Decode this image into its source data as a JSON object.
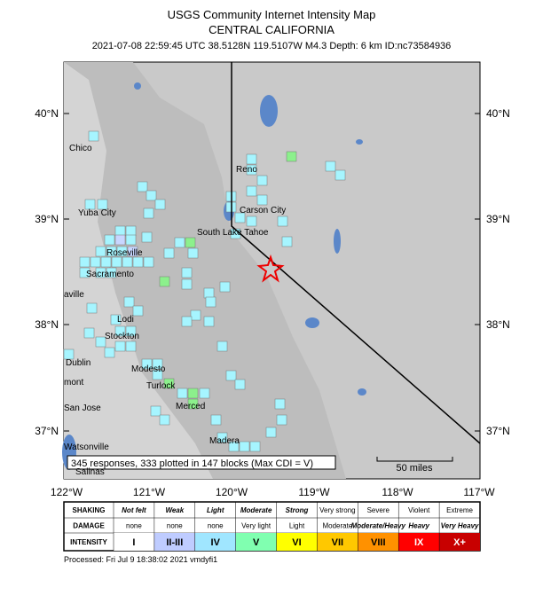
{
  "header": {
    "title": "USGS Community Internet Intensity Map",
    "region": "CENTRAL CALIFORNIA",
    "event": "2021-07-08 22:59:45 UTC 38.5128N 119.5107W M4.3 Depth: 6 km ID:nc73584936"
  },
  "map": {
    "lat_labels": [
      "40°N",
      "39°N",
      "38°N",
      "37°N"
    ],
    "lon_labels": [
      "122°W",
      "121°W",
      "120°W",
      "119°W",
      "118°W",
      "117°W"
    ],
    "places": [
      "Chico",
      "Reno",
      "Yuba City",
      "Carson City",
      "South Lake Tahoe",
      "Roseville",
      "Sacramento",
      "aville",
      "Lodi",
      "Stockton",
      "Dublin",
      "Modesto",
      "mont",
      "Turlock",
      "San Jose",
      "Merced",
      "Madera",
      "Watsonville",
      "Salinas"
    ],
    "responses": "345 responses, 333 plotted in 147 blocks (Max CDI = V)",
    "scale": "50 miles"
  },
  "legend": {
    "row_labels": [
      "SHAKING",
      "DAMAGE",
      "INTENSITY"
    ],
    "shaking": [
      "Not felt",
      "Weak",
      "Light",
      "Moderate",
      "Strong",
      "Very strong",
      "Severe",
      "Violent",
      "Extreme"
    ],
    "damage": [
      "none",
      "none",
      "none",
      "Very light",
      "Light",
      "Moderate",
      "Moderate/Heavy",
      "Heavy",
      "Very Heavy"
    ],
    "intensity": [
      "I",
      "II-III",
      "IV",
      "V",
      "VI",
      "VII",
      "VIII",
      "IX",
      "X+"
    ]
  },
  "footer": "Processed: Fri Jul 9 18:38:02 2021 vmdyfi1"
}
